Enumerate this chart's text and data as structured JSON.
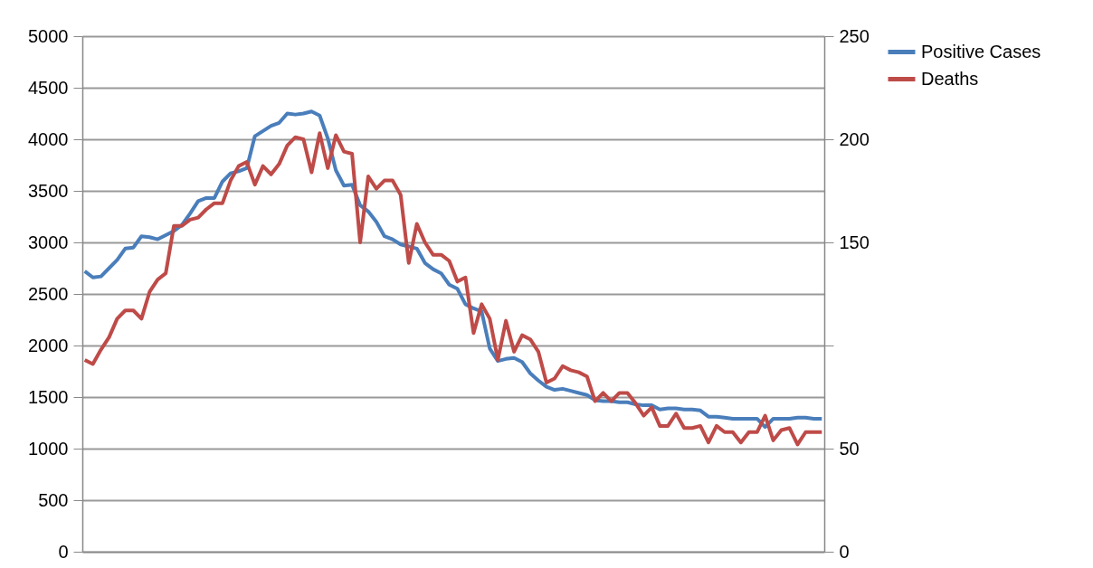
{
  "chart_data": {
    "type": "line",
    "categories": [
      null,
      null,
      null,
      null,
      null,
      null,
      null,
      null,
      null,
      null,
      null,
      null,
      null,
      null,
      null,
      null,
      null,
      null,
      null,
      null,
      null,
      null,
      null,
      null,
      null,
      null,
      null,
      null,
      null,
      null,
      null,
      null,
      null,
      null,
      null,
      null,
      null,
      null,
      null,
      null,
      null,
      null,
      null,
      null,
      null,
      null,
      null,
      null,
      null,
      null,
      null,
      null,
      null,
      null,
      null,
      null,
      null,
      null,
      null,
      null,
      null,
      null,
      null,
      null,
      null,
      null,
      null,
      null,
      null,
      null,
      null,
      null,
      null,
      null,
      null,
      null,
      null,
      null,
      null,
      null,
      null,
      null,
      null,
      null,
      null,
      null,
      null,
      null,
      null,
      null,
      null,
      null
    ],
    "series": [
      {
        "name": "Positive Cases",
        "color": "#4a7ebb",
        "values": [
          2720,
          2660,
          2670,
          2750,
          2830,
          2940,
          2950,
          3060,
          3050,
          3030,
          3070,
          3110,
          3170,
          3280,
          3400,
          3430,
          3430,
          3590,
          3670,
          3690,
          3720,
          4030,
          4080,
          4130,
          4160,
          4250,
          4240,
          4250,
          4270,
          4230,
          4010,
          3700,
          3550,
          3560,
          3360,
          3300,
          3200,
          3060,
          3030,
          2980,
          2960,
          2940,
          2800,
          2740,
          2700,
          2590,
          2550,
          2400,
          2360,
          2330,
          1970,
          1850,
          1870,
          1880,
          1840,
          1730,
          1660,
          1600,
          1570,
          1580,
          1560,
          1540,
          1520,
          1470,
          1460,
          1460,
          1450,
          1450,
          1430,
          1420,
          1420,
          1380,
          1390,
          1390,
          1380,
          1380,
          1370,
          1310,
          1310,
          1300,
          1290,
          1290,
          1290,
          1290,
          1210,
          1290,
          1290,
          1290,
          1300,
          1300,
          1290,
          1290
        ]
      },
      {
        "name": "Deaths",
        "color": "#be4b48",
        "axis": "y2",
        "values": [
          93,
          91,
          98,
          104,
          113,
          117,
          117,
          113,
          126,
          132,
          135,
          158,
          158,
          161,
          162,
          166,
          169,
          169,
          180,
          187,
          189,
          178,
          187,
          183,
          188,
          197,
          201,
          200,
          184,
          203,
          186,
          202,
          194,
          193,
          150,
          182,
          176,
          180,
          180,
          173,
          140,
          159,
          150,
          144,
          144,
          141,
          131,
          133,
          106,
          120,
          113,
          93,
          112,
          97,
          105,
          103,
          97,
          82,
          84,
          90,
          88,
          87,
          85,
          73,
          77,
          73,
          77,
          77,
          72,
          66,
          70,
          61,
          61,
          67,
          60,
          60,
          61,
          53,
          61,
          58,
          58,
          53,
          58,
          58,
          66,
          54,
          59,
          60,
          52,
          58,
          58,
          58
        ]
      }
    ],
    "ylim": [
      0,
      5000
    ],
    "yticks": [
      0,
      500,
      1000,
      1500,
      2000,
      2500,
      3000,
      3500,
      4000,
      4500,
      5000
    ],
    "y2lim": [
      0,
      250
    ],
    "y2ticks": [
      0,
      50,
      {
        "value": 100,
        "label": null
      },
      150,
      200,
      250
    ],
    "grid": "y",
    "legend": "right",
    "line_style": "solid",
    "marker": "none"
  }
}
